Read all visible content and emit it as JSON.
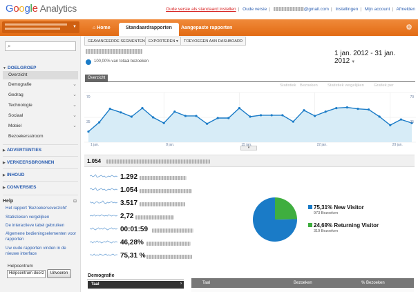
{
  "header": {
    "logo_google": "Google",
    "logo_analytics": "Analytics",
    "links": [
      {
        "label": "Oude versie als standaard instellen",
        "red": true
      },
      {
        "label": "Oude versie",
        "red": false
      },
      {
        "label": "@gmail.com",
        "red": false
      },
      {
        "label": "Instellingen",
        "red": false
      },
      {
        "label": "Mijn account",
        "red": false
      },
      {
        "label": "Afmelden",
        "red": false
      }
    ]
  },
  "nav": {
    "tabs": [
      {
        "label": "Home",
        "icon": "home-icon"
      },
      {
        "label": "Standaardrapporten",
        "active": true
      },
      {
        "label": "Aangepaste rapporten"
      }
    ],
    "settings_icon": "gear-icon"
  },
  "sidebar": {
    "sections": {
      "audience": "DOELGROEP",
      "advertising": "ADVERTENTIES",
      "traffic": "VERKEERSBRONNEN",
      "content": "INHOUD",
      "conversions": "CONVERSIES"
    },
    "items": [
      {
        "label": "Overzicht",
        "active": true,
        "chevron": false
      },
      {
        "label": "Demografie",
        "chevron": true
      },
      {
        "label": "Gedrag",
        "chevron": true
      },
      {
        "label": "Technologie",
        "chevron": true
      },
      {
        "label": "Sociaal",
        "chevron": true
      },
      {
        "label": "Mobiel",
        "chevron": true
      },
      {
        "label": "Bezoekersstroom",
        "chevron": false
      }
    ],
    "help": {
      "title": "Help",
      "links": [
        "Het rapport 'Bezoekersoverzicht'",
        "Statistieken vergelijken",
        "De interactieve tabel gebruiken",
        "Algemene bedieningselementen voor rapporten",
        "Uw oude rapporten vinden in de nieuwe interface"
      ],
      "center_label": "Helpcentrum",
      "center_input_value": "Helpcentrum doorz",
      "center_button": "Uitvoeren"
    }
  },
  "toolbar": {
    "segments": "GEAVANCEERDE SEGMENTEN",
    "export": "EXPORTEREN",
    "dashboard": "TOEVOEGEN AAN DASHBOARD"
  },
  "report": {
    "visits_pct": "100,00% van totaal bezoeken",
    "date_range": "1 jan. 2012 - 31 jan. 2012",
    "overview_tab": "Overzicht",
    "chart_options": [
      "Statistiek",
      "Bezoeken",
      "Statistiek vergelijken",
      "Grafiek per"
    ],
    "summary_value": "1.054",
    "colors": {
      "accent": "#1a7bc7",
      "returning": "#3fae3f",
      "nav": "#e8792a"
    }
  },
  "metrics": [
    {
      "value": "1.292"
    },
    {
      "value": "1.054"
    },
    {
      "value": "3.517"
    },
    {
      "value": "2,72"
    },
    {
      "value": "00:01:59"
    },
    {
      "value": "46,28%"
    },
    {
      "value": "75,31 %"
    }
  ],
  "visitor_types": [
    {
      "pct": "75,31%",
      "label": "New Visitor",
      "count": "973 Bezoeken"
    },
    {
      "pct": "24,69%",
      "label": "Returning Visitor",
      "count": "319 Bezoeken"
    }
  ],
  "chart_data": [
    {
      "type": "line",
      "title": "",
      "xlabel": "",
      "ylabel": "",
      "ylim": [
        0,
        70
      ],
      "y_ticks": [
        "70",
        "35"
      ],
      "x_tick_labels": [
        "1 jan.",
        "8 jan.",
        "15 jan.",
        "22 jan.",
        "29 jan."
      ],
      "x": [
        "1 jan.",
        "2 jan.",
        "3 jan.",
        "4 jan.",
        "5 jan.",
        "6 jan.",
        "7 jan.",
        "8 jan.",
        "9 jan.",
        "10 jan.",
        "11 jan.",
        "12 jan.",
        "13 jan.",
        "14 jan.",
        "15 jan.",
        "16 jan.",
        "17 jan.",
        "18 jan.",
        "19 jan.",
        "20 jan.",
        "21 jan.",
        "22 jan.",
        "23 jan.",
        "24 jan.",
        "25 jan.",
        "26 jan.",
        "27 jan.",
        "28 jan.",
        "29 jan.",
        "30 jan.",
        "31 jan."
      ],
      "series": [
        {
          "values": [
            15,
            28,
            47,
            42,
            36,
            48,
            35,
            27,
            43,
            37,
            37,
            26,
            34,
            34,
            48,
            36,
            38,
            38,
            38,
            29,
            45,
            37,
            43,
            48,
            49,
            47,
            46,
            36,
            24,
            32,
            27
          ]
        }
      ]
    },
    {
      "type": "pie",
      "title": "",
      "categories": [
        "New Visitor",
        "Returning Visitor"
      ],
      "values": [
        75.31,
        24.69
      ]
    }
  ]
}
